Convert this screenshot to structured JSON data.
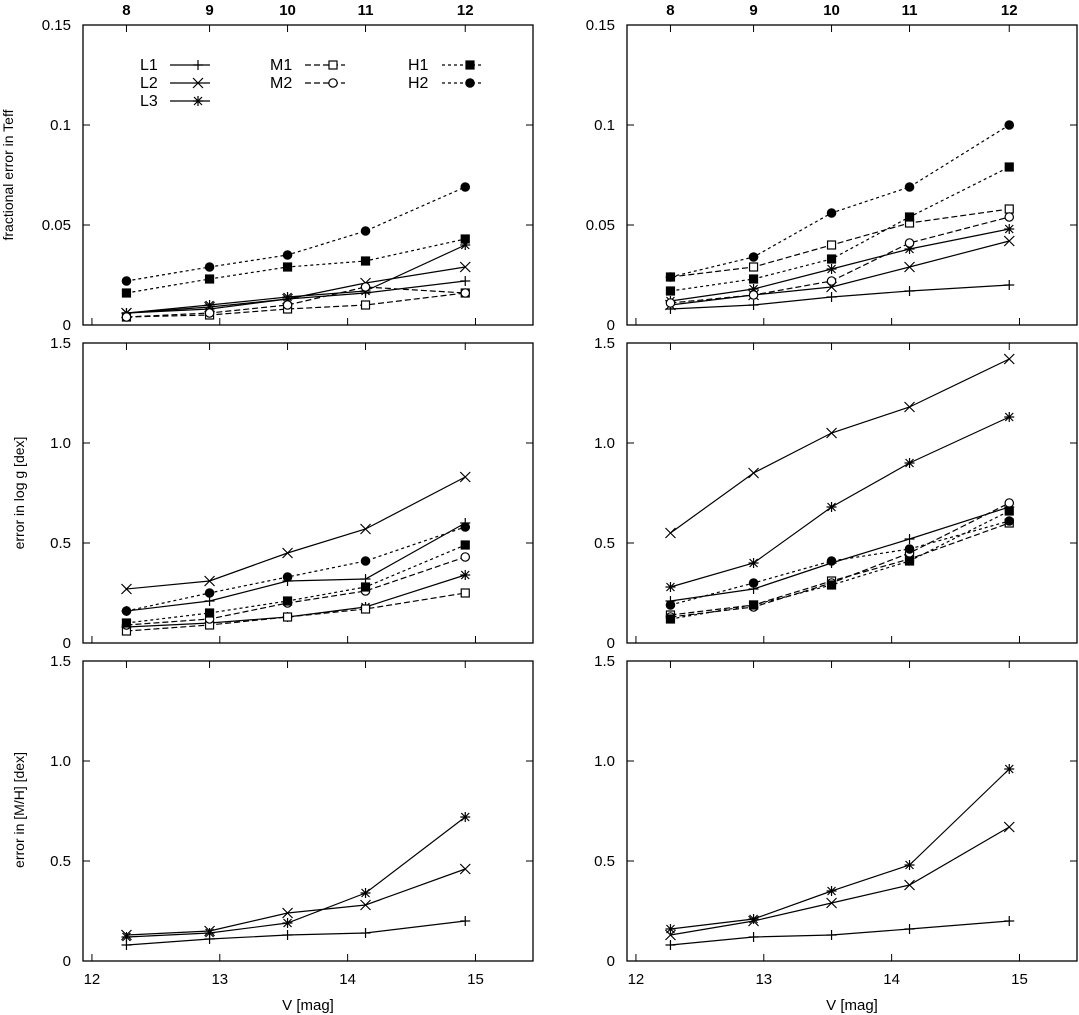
{
  "figure": {
    "x_axis_label": "V [mag]",
    "top_axis_ticks": [
      "8",
      "9",
      "10",
      "11",
      "12"
    ],
    "bottom_axis_ticks": [
      "12",
      "13",
      "14",
      "15"
    ]
  },
  "legend": {
    "L1": "L1",
    "L2": "L2",
    "L3": "L3",
    "M1": "M1",
    "M2": "M2",
    "H1": "H1",
    "H2": "H2"
  },
  "chart_data": [
    {
      "type": "line",
      "panel": "top-left",
      "ylabel": "fractional error in Teff",
      "xlim": [
        11.93,
        15.45
      ],
      "ylim": [
        0,
        0.15
      ],
      "yticks": [
        "0",
        "0.05",
        "0.1",
        "0.15"
      ],
      "x": [
        12.27,
        12.92,
        13.53,
        14.14,
        14.92
      ],
      "legend": "top-left",
      "series": [
        {
          "name": "L1",
          "values": [
            0.006,
            0.008,
            0.013,
            0.016,
            0.022
          ]
        },
        {
          "name": "L2",
          "values": [
            0.006,
            0.009,
            0.013,
            0.021,
            0.029
          ]
        },
        {
          "name": "L3",
          "values": [
            0.006,
            0.01,
            0.014,
            0.017,
            0.04
          ]
        },
        {
          "name": "M1",
          "values": [
            0.004,
            0.005,
            0.008,
            0.01,
            0.016
          ]
        },
        {
          "name": "M2",
          "values": [
            0.004,
            0.006,
            0.01,
            0.019,
            0.016
          ]
        },
        {
          "name": "H1",
          "values": [
            0.016,
            0.023,
            0.029,
            0.032,
            0.043
          ]
        },
        {
          "name": "H2",
          "values": [
            0.022,
            0.029,
            0.035,
            0.047,
            0.069
          ]
        }
      ]
    },
    {
      "type": "line",
      "panel": "top-right",
      "ylabel": "",
      "xlim": [
        11.93,
        15.45
      ],
      "ylim": [
        0,
        0.15
      ],
      "yticks": [
        "0",
        "0.05",
        "0.1",
        "0.15"
      ],
      "x": [
        12.27,
        12.92,
        13.53,
        14.14,
        14.92
      ],
      "series": [
        {
          "name": "L1",
          "values": [
            0.008,
            0.01,
            0.014,
            0.017,
            0.02
          ]
        },
        {
          "name": "L2",
          "values": [
            0.01,
            0.015,
            0.019,
            0.029,
            0.042
          ]
        },
        {
          "name": "L3",
          "values": [
            0.012,
            0.018,
            0.028,
            0.038,
            0.048
          ]
        },
        {
          "name": "M1",
          "values": [
            0.024,
            0.029,
            0.04,
            0.051,
            0.058
          ]
        },
        {
          "name": "M2",
          "values": [
            0.011,
            0.015,
            0.022,
            0.041,
            0.054
          ]
        },
        {
          "name": "H1",
          "values": [
            0.017,
            0.023,
            0.033,
            0.054,
            0.079
          ]
        },
        {
          "name": "H2",
          "values": [
            0.024,
            0.034,
            0.056,
            0.069,
            0.1
          ]
        }
      ]
    },
    {
      "type": "line",
      "panel": "middle-left",
      "ylabel": "error in log g [dex]",
      "xlim": [
        11.93,
        15.45
      ],
      "ylim": [
        0,
        1.5
      ],
      "yticks": [
        "0",
        "0.5",
        "1.0",
        "1.5"
      ],
      "x": [
        12.27,
        12.92,
        13.53,
        14.14,
        14.92
      ],
      "series": [
        {
          "name": "L1",
          "values": [
            0.16,
            0.21,
            0.31,
            0.32,
            0.6
          ]
        },
        {
          "name": "L2",
          "values": [
            0.27,
            0.31,
            0.45,
            0.57,
            0.83
          ]
        },
        {
          "name": "L3",
          "values": [
            0.08,
            0.1,
            0.13,
            0.18,
            0.34
          ]
        },
        {
          "name": "M1",
          "values": [
            0.06,
            0.09,
            0.13,
            0.17,
            0.25
          ]
        },
        {
          "name": "M2",
          "values": [
            0.09,
            0.12,
            0.2,
            0.26,
            0.43
          ]
        },
        {
          "name": "H1",
          "values": [
            0.1,
            0.15,
            0.21,
            0.28,
            0.49
          ]
        },
        {
          "name": "H2",
          "values": [
            0.16,
            0.25,
            0.33,
            0.41,
            0.58
          ]
        }
      ]
    },
    {
      "type": "line",
      "panel": "middle-right",
      "ylabel": "",
      "xlim": [
        11.93,
        15.45
      ],
      "ylim": [
        0,
        1.5
      ],
      "yticks": [
        "0",
        "0.5",
        "1.0",
        "1.5"
      ],
      "x": [
        12.27,
        12.92,
        13.53,
        14.14,
        14.92
      ],
      "series": [
        {
          "name": "L1",
          "values": [
            0.21,
            0.27,
            0.4,
            0.52,
            0.68
          ]
        },
        {
          "name": "L2",
          "values": [
            0.55,
            0.85,
            1.05,
            1.18,
            1.42
          ]
        },
        {
          "name": "L3",
          "values": [
            0.28,
            0.4,
            0.68,
            0.9,
            1.13
          ]
        },
        {
          "name": "M1",
          "values": [
            0.14,
            0.19,
            0.31,
            0.42,
            0.6
          ]
        },
        {
          "name": "M2",
          "values": [
            0.13,
            0.18,
            0.3,
            0.45,
            0.7
          ]
        },
        {
          "name": "H1",
          "values": [
            0.12,
            0.19,
            0.29,
            0.41,
            0.66
          ]
        },
        {
          "name": "H2",
          "values": [
            0.19,
            0.3,
            0.41,
            0.47,
            0.61
          ]
        }
      ]
    },
    {
      "type": "line",
      "panel": "bottom-left",
      "ylabel": "error in [M/H] [dex]",
      "xlabel": "V [mag]",
      "xlim": [
        11.93,
        15.45
      ],
      "ylim": [
        0,
        1.5
      ],
      "yticks": [
        "0",
        "0.5",
        "1.0",
        "1.5"
      ],
      "x": [
        12.27,
        12.92,
        13.53,
        14.14,
        14.92
      ],
      "series": [
        {
          "name": "L1",
          "values": [
            0.08,
            0.11,
            0.13,
            0.14,
            0.2
          ]
        },
        {
          "name": "L2",
          "values": [
            0.13,
            0.15,
            0.24,
            0.28,
            0.46
          ]
        },
        {
          "name": "L3",
          "values": [
            0.12,
            0.14,
            0.19,
            0.34,
            0.72
          ]
        }
      ]
    },
    {
      "type": "line",
      "panel": "bottom-right",
      "ylabel": "",
      "xlabel": "V [mag]",
      "xlim": [
        11.93,
        15.45
      ],
      "ylim": [
        0,
        1.5
      ],
      "yticks": [
        "0",
        "0.5",
        "1.0",
        "1.5"
      ],
      "x": [
        12.27,
        12.92,
        13.53,
        14.14,
        14.92
      ],
      "series": [
        {
          "name": "L1",
          "values": [
            0.08,
            0.12,
            0.13,
            0.16,
            0.2
          ]
        },
        {
          "name": "L2",
          "values": [
            0.13,
            0.2,
            0.29,
            0.38,
            0.67
          ]
        },
        {
          "name": "L3",
          "values": [
            0.16,
            0.21,
            0.35,
            0.48,
            0.96
          ]
        }
      ]
    }
  ]
}
